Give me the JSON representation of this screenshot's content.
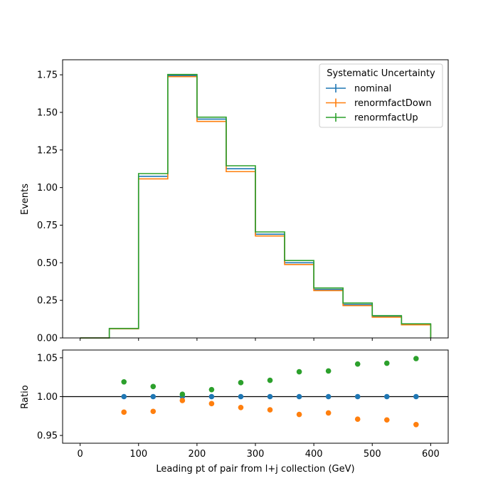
{
  "chart_data": [
    {
      "type": "histogram-step",
      "panel": "main",
      "bin_edges": [
        0,
        50,
        100,
        150,
        200,
        250,
        300,
        350,
        400,
        450,
        500,
        550,
        600
      ],
      "xlim": [
        -30,
        630
      ],
      "ylim": [
        0,
        1.85
      ],
      "ylabel": "Events",
      "y_ticks": [
        0.0,
        0.25,
        0.5,
        0.75,
        1.0,
        1.25,
        1.5,
        1.75
      ],
      "y_tick_labels": [
        "0.00",
        "0.25",
        "0.50",
        "0.75",
        "1.00",
        "1.25",
        "1.50",
        "1.75"
      ],
      "legend": {
        "title": "Systematic Uncertainty",
        "placement": "upper right"
      },
      "series": [
        {
          "name": "nominal",
          "color": "#1f77b4",
          "values": [
            0.0,
            0.062,
            1.075,
            1.745,
            1.455,
            1.125,
            0.69,
            0.5,
            0.322,
            0.222,
            0.142,
            0.09
          ]
        },
        {
          "name": "renormfactDown",
          "color": "#ff7f0e",
          "values": [
            0.0,
            0.061,
            1.058,
            1.738,
            1.44,
            1.106,
            0.678,
            0.488,
            0.315,
            0.215,
            0.138,
            0.087
          ]
        },
        {
          "name": "renormfactUp",
          "color": "#2ca02c",
          "values": [
            0.0,
            0.063,
            1.093,
            1.752,
            1.468,
            1.145,
            0.705,
            0.515,
            0.332,
            0.232,
            0.148,
            0.094
          ]
        }
      ]
    },
    {
      "type": "scatter",
      "panel": "ratio",
      "x": [
        75,
        125,
        175,
        225,
        275,
        325,
        375,
        425,
        475,
        525,
        575
      ],
      "xlim": [
        -30,
        630
      ],
      "ylim": [
        0.94,
        1.06
      ],
      "xlabel": "Leading pt of pair from l+j collection (GeV)",
      "ylabel": "Ratio",
      "x_ticks": [
        0,
        100,
        200,
        300,
        400,
        500,
        600
      ],
      "x_tick_labels": [
        "0",
        "100",
        "200",
        "300",
        "400",
        "500",
        "600"
      ],
      "y_ticks": [
        0.95,
        1.0,
        1.05
      ],
      "y_tick_labels": [
        "0.95",
        "1.00",
        "1.05"
      ],
      "reference_line": 1.0,
      "series": [
        {
          "name": "nominal",
          "color": "#1f77b4",
          "values": [
            1.0,
            1.0,
            1.0,
            1.0,
            1.0,
            1.0,
            1.0,
            1.0,
            1.0,
            1.0,
            1.0
          ]
        },
        {
          "name": "renormfactDown",
          "color": "#ff7f0e",
          "values": [
            0.98,
            0.981,
            0.995,
            0.991,
            0.986,
            0.983,
            0.977,
            0.979,
            0.971,
            0.97,
            0.964
          ]
        },
        {
          "name": "renormfactUp",
          "color": "#2ca02c",
          "values": [
            1.019,
            1.013,
            1.003,
            1.009,
            1.018,
            1.021,
            1.032,
            1.033,
            1.042,
            1.043,
            1.049
          ]
        }
      ]
    }
  ]
}
